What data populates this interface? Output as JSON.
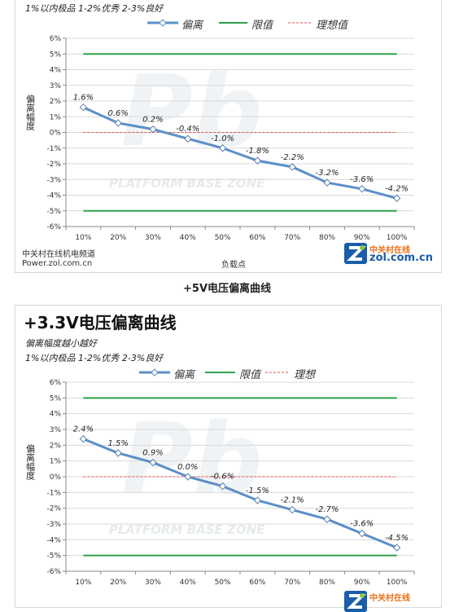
{
  "charts": [
    {
      "subtitle_line2": "1%以内极品 1-2%优秀  2-3%良好",
      "legend": {
        "deviation": "偏离",
        "limit": "限值",
        "ideal": "理想值"
      },
      "ylabel": "偏离幅度",
      "xlabel": "负载点",
      "source_line1": "中关村在线机电频道",
      "source_line2": "Power.zol.com.cn",
      "caption": "+5V电压偏离曲线"
    },
    {
      "title": "+3.3V电压偏离曲线",
      "subtitle_line1": "偏离幅度越小越好",
      "subtitle_line2": "1%以内极品 1-2%优秀  2-3%良好",
      "legend": {
        "deviation": "偏离",
        "limit": "限值",
        "ideal": "理想"
      },
      "ylabel": "偏离幅度"
    }
  ],
  "watermark": {
    "big": "Pb",
    "text": "PLATFORM BASE ZONE"
  },
  "logo": {
    "line1": "中关村在线",
    "line2": "zol.com.cn"
  },
  "colors": {
    "series": "#5b8fc9",
    "limit": "#2ca24a",
    "ideal": "#e05050",
    "grid": "#d9d9d9"
  },
  "chart_data": [
    {
      "type": "line",
      "categories": [
        "10%",
        "20%",
        "30%",
        "40%",
        "50%",
        "60%",
        "70%",
        "80%",
        "90%",
        "100%"
      ],
      "series": [
        {
          "name": "偏离",
          "values": [
            1.6,
            0.6,
            0.2,
            -0.4,
            -1.0,
            -1.8,
            -2.2,
            -3.2,
            -3.6,
            -4.2
          ],
          "labels": [
            "1.6%",
            "0.6%",
            "0.2%",
            "-0.4%",
            "-1.0%",
            "-1.8%",
            "-2.2%",
            "-3.2%",
            "-3.6%",
            "-4.2%"
          ]
        }
      ],
      "limits": [
        5,
        -5
      ],
      "ideal": 0,
      "ylim": [
        -6,
        6
      ],
      "yticks": [
        "6%",
        "5%",
        "4%",
        "3%",
        "2%",
        "1%",
        "0%",
        "-1%",
        "-2%",
        "-3%",
        "-4%",
        "-5%",
        "-6%"
      ],
      "grid": true,
      "legend_position": "top"
    },
    {
      "type": "line",
      "categories": [
        "10%",
        "20%",
        "30%",
        "40%",
        "50%",
        "60%",
        "70%",
        "80%",
        "90%",
        "100%"
      ],
      "series": [
        {
          "name": "偏离",
          "values": [
            2.4,
            1.5,
            0.9,
            0.0,
            -0.6,
            -1.5,
            -2.1,
            -2.7,
            -3.6,
            -4.5
          ],
          "labels": [
            "2.4%",
            "1.5%",
            "0.9%",
            "0.0%",
            "-0.6%",
            "-1.5%",
            "-2.1%",
            "-2.7%",
            "-3.6%",
            "-4.5%"
          ]
        }
      ],
      "limits": [
        5,
        -5
      ],
      "ideal": 0,
      "ylim": [
        -6,
        6
      ],
      "yticks": [
        "6%",
        "5%",
        "4%",
        "3%",
        "2%",
        "1%",
        "0%",
        "-1%",
        "-2%",
        "-3%",
        "-4%",
        "-5%",
        "-6%"
      ],
      "grid": true,
      "legend_position": "top"
    }
  ]
}
